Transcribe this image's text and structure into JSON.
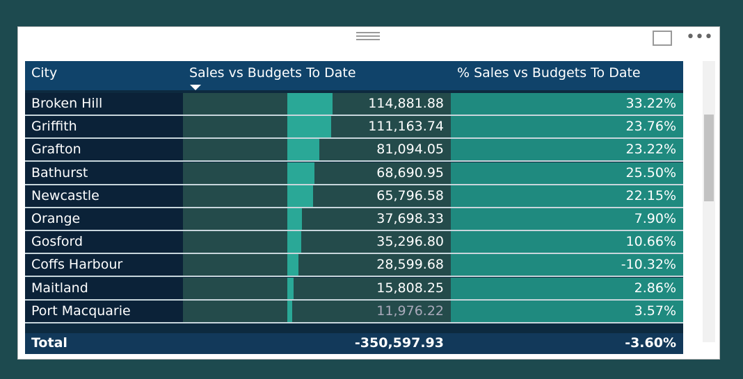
{
  "header": {
    "columns": [
      "City",
      "Sales vs Budgets To Date",
      "% Sales vs Budgets To Date"
    ]
  },
  "table": {
    "rows": [
      {
        "city": "Broken Hill",
        "sales": 114881.88,
        "sales_label": "114,881.88",
        "pct": "33.22%"
      },
      {
        "city": "Griffith",
        "sales": 111163.74,
        "sales_label": "111,163.74",
        "pct": "23.76%"
      },
      {
        "city": "Grafton",
        "sales": 81094.05,
        "sales_label": "81,094.05",
        "pct": "23.22%"
      },
      {
        "city": "Bathurst",
        "sales": 68690.95,
        "sales_label": "68,690.95",
        "pct": "25.50%"
      },
      {
        "city": "Newcastle",
        "sales": 65796.58,
        "sales_label": "65,796.58",
        "pct": "22.15%"
      },
      {
        "city": "Orange",
        "sales": 37698.33,
        "sales_label": "37,698.33",
        "pct": "7.90%"
      },
      {
        "city": "Gosford",
        "sales": 35296.8,
        "sales_label": "35,296.80",
        "pct": "10.66%"
      },
      {
        "city": "Coffs Harbour",
        "sales": 28599.68,
        "sales_label": "28,599.68",
        "pct": "-10.32%"
      },
      {
        "city": "Maitland",
        "sales": 15808.25,
        "sales_label": "15,808.25",
        "pct": "2.86%"
      },
      {
        "city": "Port Macquarie",
        "sales": 11976.22,
        "sales_label": "11,976.22",
        "pct": "3.57%"
      }
    ],
    "total": {
      "label": "Total",
      "sales": "-350,597.93",
      "pct": "-3.60%"
    }
  }
}
